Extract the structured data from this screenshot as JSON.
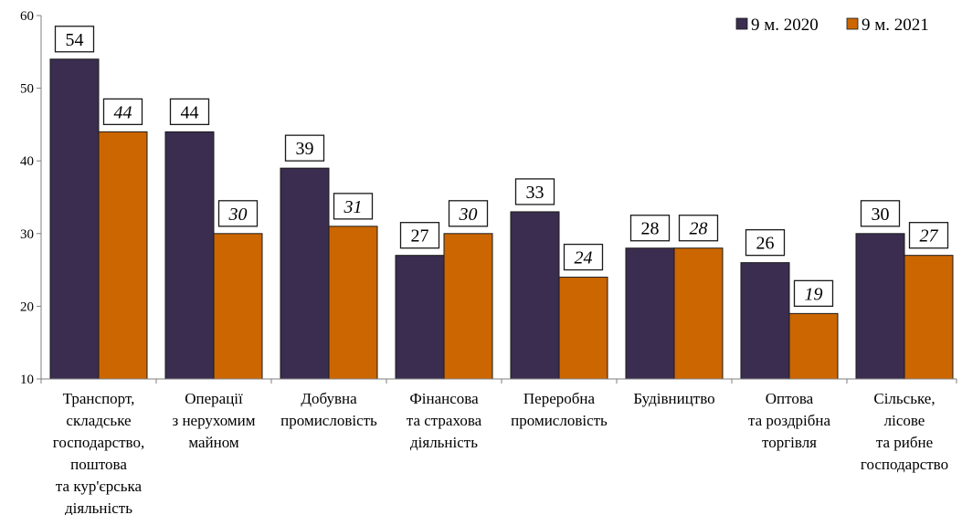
{
  "chart_data": {
    "type": "bar",
    "title": "",
    "xlabel": "",
    "ylabel": "",
    "ylim": [
      10,
      60
    ],
    "yticks": [
      10,
      20,
      30,
      40,
      50,
      60
    ],
    "grid": false,
    "legend_position": "top-right",
    "categories": [
      [
        "Транспорт,",
        "складське",
        "господарство,",
        "поштова",
        "та кур'єрська",
        "діяльність"
      ],
      [
        "Операції",
        "з нерухомим",
        "майном"
      ],
      [
        "Добувна",
        "промисловість"
      ],
      [
        "Фінансова",
        "та страхова",
        "діяльність"
      ],
      [
        "Переробна",
        "промисловість"
      ],
      [
        "Будівництво"
      ],
      [
        "Оптова",
        "та роздрібна",
        "торгівля"
      ],
      [
        "Сільське,",
        "лісове",
        "та рибне",
        "господарство"
      ]
    ],
    "series": [
      {
        "name": "9 м. 2020",
        "color": "#3a2d4f",
        "label_style": "normal",
        "values": [
          54,
          44,
          39,
          27,
          33,
          28,
          26,
          30
        ]
      },
      {
        "name": "9 м. 2021",
        "color": "#cc6600",
        "label_style": "italic",
        "values": [
          44,
          30,
          31,
          30,
          24,
          28,
          19,
          27
        ]
      }
    ]
  }
}
